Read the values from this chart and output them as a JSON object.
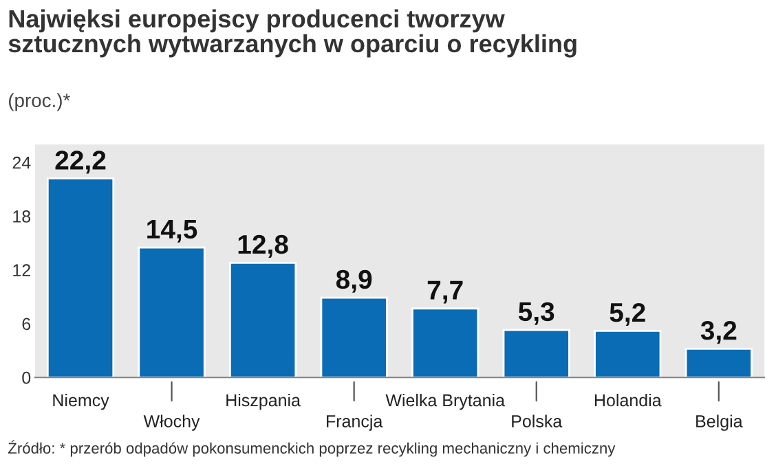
{
  "chart_data": {
    "type": "bar",
    "title": "Najwięksi europejscy producenci tworzyw\nsztucznych wytwarzanych w oparciu o recykling",
    "subtitle": "(proc.)*",
    "categories": [
      "Niemcy",
      "Włochy",
      "Hiszpania",
      "Francja",
      "Wielka Brytania",
      "Polska",
      "Holandia",
      "Belgia"
    ],
    "values": [
      22.2,
      14.5,
      12.8,
      8.9,
      7.7,
      5.3,
      5.2,
      3.2
    ],
    "color": "#0a6cb4",
    "ylim": [
      0,
      26
    ],
    "yticks": [
      0,
      6,
      12,
      18,
      24
    ],
    "grid": false,
    "value_labels": [
      "22,2",
      "14,5",
      "12,8",
      "8,9",
      "7,7",
      "5,3",
      "5,2",
      "3,2"
    ],
    "annotations": [
      "Źródło: * przerób odpadów pokonsumenckich poprzez recykling mechaniczny i chemiczny"
    ]
  }
}
